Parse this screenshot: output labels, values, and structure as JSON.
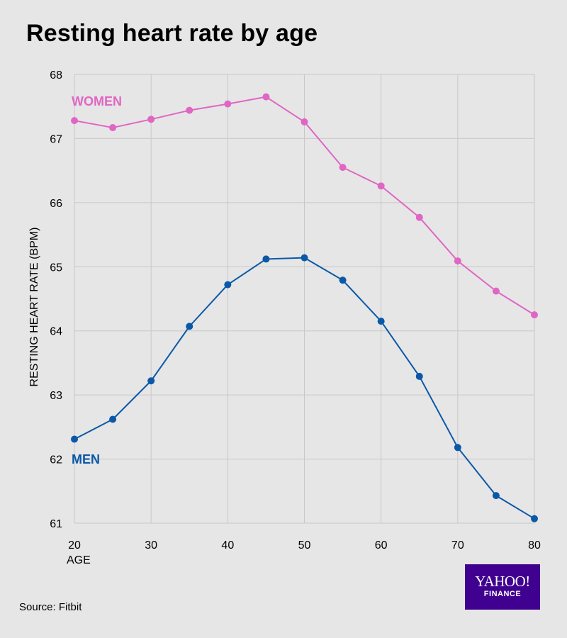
{
  "chart_data": {
    "type": "line",
    "title": "Resting heart rate by age",
    "xlabel": "AGE",
    "ylabel": "RESTING HEART RATE (BPM)",
    "xlim": [
      20,
      80
    ],
    "ylim": [
      61,
      68
    ],
    "x_ticks": [
      20,
      30,
      40,
      50,
      60,
      70,
      80
    ],
    "y_ticks": [
      61,
      62,
      63,
      64,
      65,
      66,
      67,
      68
    ],
    "grid": true,
    "legend": "inline labels",
    "x": [
      20,
      25,
      30,
      35,
      40,
      45,
      50,
      55,
      60,
      65,
      70,
      75,
      80
    ],
    "series": [
      {
        "name": "WOMEN",
        "color": "#e066c4",
        "values": [
          67.28,
          67.17,
          67.3,
          67.44,
          67.54,
          67.65,
          67.26,
          66.55,
          66.26,
          65.77,
          65.09,
          64.62,
          64.25
        ]
      },
      {
        "name": "MEN",
        "color": "#0b58a8",
        "values": [
          62.31,
          62.62,
          63.22,
          64.07,
          64.72,
          65.12,
          65.14,
          64.79,
          64.15,
          63.29,
          62.18,
          61.43,
          61.07
        ]
      }
    ]
  },
  "source": "Source: Fitbit",
  "logo": {
    "main": "YAHOO!",
    "sub": "FINANCE"
  }
}
